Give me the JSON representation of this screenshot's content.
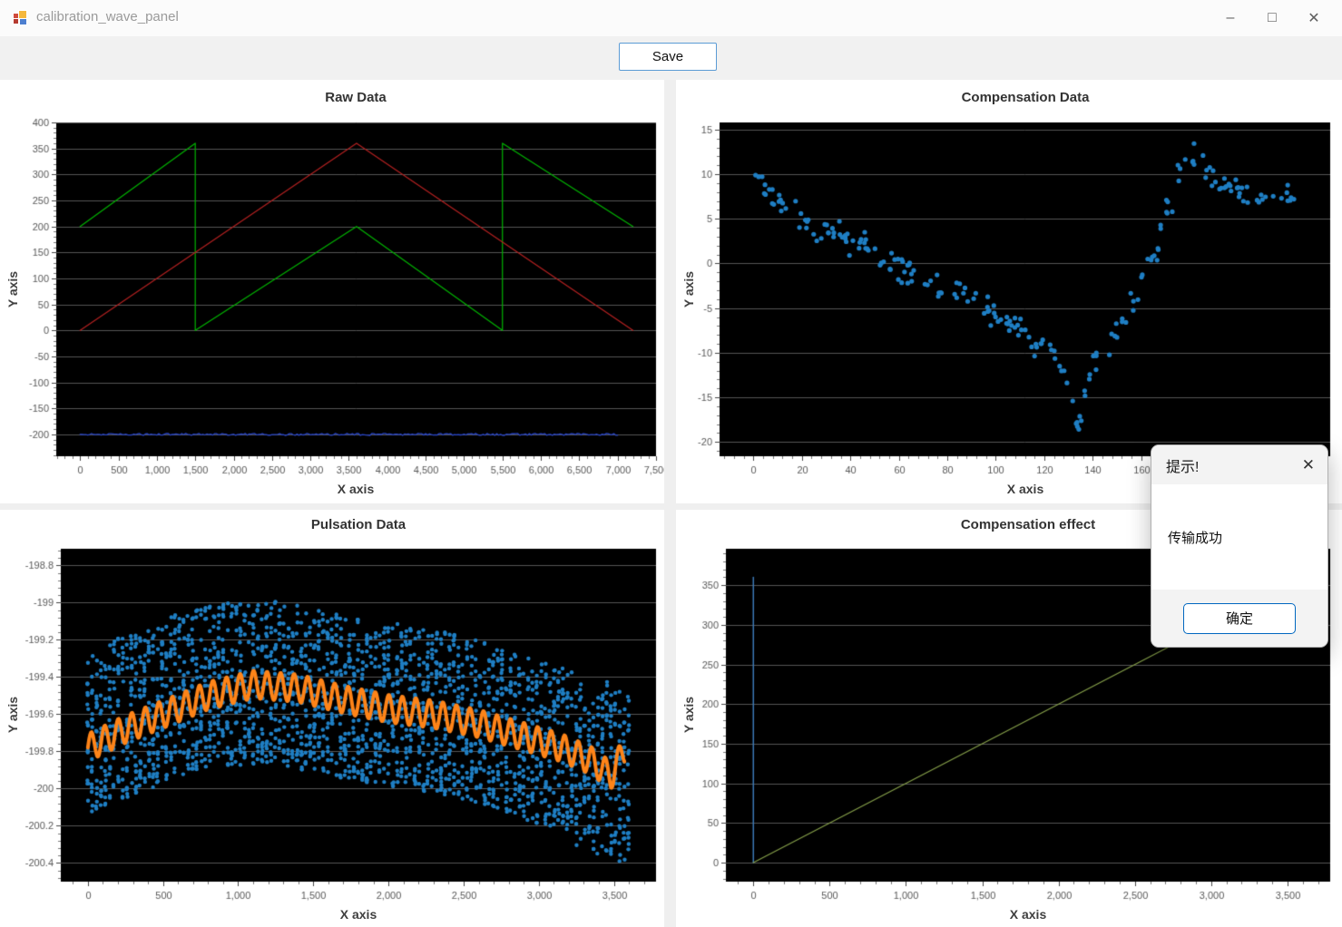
{
  "window": {
    "title": "calibration_wave_panel",
    "controls": {
      "minimize": "–",
      "maximize": "□",
      "close": "✕"
    }
  },
  "toolbar": {
    "save_label": "Save"
  },
  "dialog": {
    "title": "提示!",
    "message": "传输成功",
    "ok_label": "确定",
    "close_icon": "✕"
  },
  "colors": {
    "plot_background": "#000000",
    "gridline": "#606060",
    "tick_label": "#595959",
    "scatter_blue": "#1f7fc4",
    "wave_orange": "#ff8418",
    "raw_green": "#00b400",
    "raw_red": "#b42121",
    "raw_blue": "#2946c8",
    "effect_green": "#86a04a",
    "effect_blue": "#3c78b4",
    "save_border": "#5b9bd5",
    "ok_border": "#0067c0"
  },
  "chart_data": [
    {
      "type": "line",
      "title": "Raw Data",
      "xlabel": "X axis",
      "ylabel": "Y axis",
      "xlim": [
        -310,
        7500
      ],
      "ylim": [
        -242,
        400
      ],
      "xticks": {
        "min": 0,
        "max": 7500,
        "step": 500
      },
      "yticks": {
        "min": -200,
        "max": 400,
        "step": 50
      },
      "grid": "horizontal",
      "series": [
        {
          "name": "green-sawtooth",
          "color": "#00b400",
          "width": 1.2,
          "points": [
            [
              0,
              200
            ],
            [
              1500,
              360
            ],
            [
              1500,
              0
            ],
            [
              3600,
              200
            ],
            [
              5500,
              0
            ],
            [
              5500,
              360
            ],
            [
              7200,
              200
            ]
          ]
        },
        {
          "name": "red-triangle",
          "color": "#b42121",
          "width": 1.2,
          "points": [
            [
              0,
              0
            ],
            [
              3600,
              360
            ],
            [
              7200,
              0
            ]
          ]
        },
        {
          "name": "blue-baseline",
          "color": "#2946c8",
          "width": 1.3,
          "baseline": {
            "y": -200,
            "x0": 0,
            "x1": 7000,
            "jitter": 1.1,
            "step": 25,
            "seed": 11
          }
        }
      ]
    },
    {
      "type": "scatter",
      "title": "Compensation Data",
      "xlabel": "X axis",
      "ylabel": "Y axis",
      "xlim": [
        -14,
        238
      ],
      "ylim": [
        -21.6,
        15.8
      ],
      "xticks": {
        "min": 0,
        "max": 220,
        "step": 20
      },
      "yticks": {
        "min": -20,
        "max": 15,
        "step": 5
      },
      "grid": "horizontal",
      "scatter": {
        "name": "compensation-points",
        "color": "#1f7fc4",
        "radius": 2.6,
        "count": 218,
        "seed": 42,
        "noise": 2.0,
        "x_max": 224,
        "trend": [
          [
            0,
            9.5
          ],
          [
            12,
            6.5
          ],
          [
            25,
            4.5
          ],
          [
            40,
            2.5
          ],
          [
            55,
            0.5
          ],
          [
            70,
            -2
          ],
          [
            85,
            -3.5
          ],
          [
            100,
            -5.5
          ],
          [
            112,
            -8
          ],
          [
            122,
            -10
          ],
          [
            130,
            -13
          ],
          [
            134,
            -18.5
          ],
          [
            139,
            -12.5
          ],
          [
            147,
            -9
          ],
          [
            155,
            -5.5
          ],
          [
            163,
            -1
          ],
          [
            171,
            6
          ],
          [
            177,
            11.5
          ],
          [
            183,
            12
          ],
          [
            191,
            9
          ],
          [
            199,
            8.5
          ],
          [
            208,
            7
          ],
          [
            216,
            8
          ],
          [
            224,
            6
          ]
        ]
      }
    },
    {
      "type": "scatter-line",
      "title": "Pulsation Data",
      "xlabel": "X axis",
      "ylabel": "Y axis",
      "xlim": [
        -180,
        3780
      ],
      "ylim": [
        -200.5,
        -198.71
      ],
      "xticks": {
        "min": 0,
        "max": 3500,
        "step": 500
      },
      "yticks": {
        "min": -200.4,
        "max": -198.8,
        "step": 0.2
      },
      "grid": "horizontal",
      "scatter": {
        "name": "pulsation-points",
        "color": "#1f7fc4",
        "radius": 2.2,
        "columns": 125,
        "per_column": 19,
        "col_step": 29,
        "col_jitter": 9,
        "seed": 1337,
        "spread": 0.44,
        "trend": [
          [
            0,
            -199.7
          ],
          [
            300,
            -199.6
          ],
          [
            600,
            -199.5
          ],
          [
            900,
            -199.44
          ],
          [
            1200,
            -199.42
          ],
          [
            1500,
            -199.47
          ],
          [
            1800,
            -199.52
          ],
          [
            2100,
            -199.56
          ],
          [
            2400,
            -199.6
          ],
          [
            2700,
            -199.67
          ],
          [
            3000,
            -199.75
          ],
          [
            3300,
            -199.82
          ],
          [
            3600,
            -199.9
          ]
        ]
      },
      "wave": {
        "name": "pulsation-mean-wave",
        "color": "#ff8418",
        "width": 4,
        "period": 90,
        "amplitude": 0.075,
        "x_max": 3570,
        "trend": [
          [
            0,
            -199.78
          ],
          [
            250,
            -199.68
          ],
          [
            500,
            -199.6
          ],
          [
            800,
            -199.5
          ],
          [
            1100,
            -199.44
          ],
          [
            1400,
            -199.46
          ],
          [
            1700,
            -199.52
          ],
          [
            2000,
            -199.57
          ],
          [
            2300,
            -199.6
          ],
          [
            2600,
            -199.65
          ],
          [
            2900,
            -199.72
          ],
          [
            3150,
            -199.78
          ],
          [
            3350,
            -199.85
          ],
          [
            3480,
            -199.93
          ],
          [
            3570,
            -199.79
          ]
        ]
      }
    },
    {
      "type": "line",
      "title": "Compensation effect",
      "xlabel": "X axis",
      "ylabel": "Y axis",
      "xlim": [
        -180,
        3780
      ],
      "ylim": [
        -24,
        396
      ],
      "xticks": {
        "min": 0,
        "max": 3500,
        "step": 500
      },
      "yticks": {
        "min": 0,
        "max": 350,
        "step": 50
      },
      "grid": "horizontal",
      "series": [
        {
          "name": "initial-vertical-line",
          "color": "#3c78b4",
          "width": 1.5,
          "points": [
            [
              0,
              0
            ],
            [
              0,
              360
            ]
          ]
        },
        {
          "name": "compensated-ramp",
          "color": "#86a04a",
          "width": 1.2,
          "points": [
            [
              0,
              0
            ],
            [
              3600,
              360
            ]
          ]
        }
      ]
    }
  ]
}
